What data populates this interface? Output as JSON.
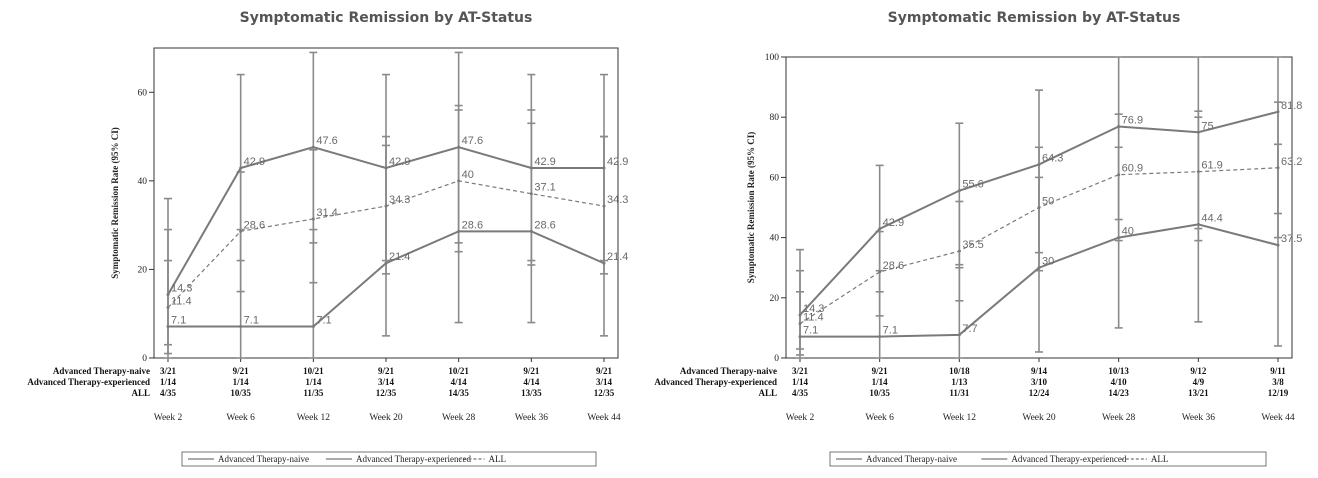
{
  "chart_data": [
    {
      "type": "line",
      "title": "Symptomatic Remission by AT-Status",
      "ylabel": "Symptomatic Remission Rate (95% CI)",
      "ylim": [
        0,
        70
      ],
      "yticks": [
        0,
        20,
        40,
        60
      ],
      "categories": [
        "Week 2",
        "Week 6",
        "Week 12",
        "Week 20",
        "Week 28",
        "Week 36",
        "Week 44"
      ],
      "series": [
        {
          "name": "Advanced Therapy-naive",
          "style": "solid",
          "color": "#7a7a7a",
          "values": [
            14.3,
            42.9,
            47.6,
            42.9,
            47.6,
            42.9,
            42.9
          ],
          "labels": [
            "14.3",
            "42.9",
            "47.6",
            "42.9",
            "47.6",
            "42.9",
            "42.9"
          ],
          "ci_low": [
            3,
            22,
            26,
            22,
            26,
            22,
            22
          ],
          "ci_high": [
            36,
            64,
            69,
            64,
            69,
            64,
            64
          ]
        },
        {
          "name": "Advanced Therapy-experienced",
          "style": "solid",
          "color": "#7a7a7a",
          "values": [
            7.1,
            7.1,
            7.1,
            21.4,
            28.6,
            28.6,
            21.4
          ],
          "labels": [
            "7.1",
            "7.1",
            "7.1",
            "21.4",
            "28.6",
            "28.6",
            "21.4"
          ],
          "ci_low": [
            0,
            0,
            0,
            5,
            8,
            8,
            5
          ],
          "ci_high": [
            29,
            29,
            29,
            48,
            56,
            56,
            50
          ]
        },
        {
          "name": "ALL",
          "style": "dashed",
          "color": "#7a7a7a",
          "values": [
            11.4,
            28.6,
            31.4,
            34.3,
            40,
            37.1,
            34.3
          ],
          "labels": [
            "11.4",
            "28.6",
            "31.4",
            "34.3",
            "40",
            "37.1",
            "34.3"
          ],
          "ci_low": [
            1,
            15,
            17,
            19,
            24,
            21,
            19
          ],
          "ci_high": [
            22,
            42,
            47,
            50,
            57,
            53,
            50
          ]
        }
      ],
      "n_table": {
        "rows": [
          {
            "label": "Advanced Therapy-naive",
            "values": [
              "3/21",
              "9/21",
              "10/21",
              "9/21",
              "10/21",
              "9/21",
              "9/21"
            ]
          },
          {
            "label": "Advanced Therapy-experienced",
            "values": [
              "1/14",
              "1/14",
              "1/14",
              "3/14",
              "4/14",
              "4/14",
              "3/14"
            ]
          },
          {
            "label": "ALL",
            "values": [
              "4/35",
              "10/35",
              "11/35",
              "12/35",
              "14/35",
              "13/35",
              "12/35"
            ]
          }
        ]
      },
      "legend": [
        "Advanced Therapy-naive",
        "Advanced Therapy-experienced",
        "ALL"
      ],
      "legend_position": "bottom-center"
    },
    {
      "type": "line",
      "title": "Symptomatic Remission by AT-Status",
      "ylabel": "Symptomatic Remission Rate (95% CI)",
      "ylim": [
        0,
        100
      ],
      "yticks": [
        0,
        20,
        40,
        60,
        80,
        100
      ],
      "categories": [
        "Week 2",
        "Week 6",
        "Week 12",
        "Week 20",
        "Week 28",
        "Week 36",
        "Week 44"
      ],
      "series": [
        {
          "name": "Advanced Therapy-naive",
          "style": "solid",
          "color": "#7a7a7a",
          "values": [
            14.3,
            42.9,
            55.6,
            64.3,
            76.9,
            75,
            81.8
          ],
          "labels": [
            "14.3",
            "42.9",
            "55.6",
            "64.3",
            "76.9",
            "75",
            "81.8"
          ],
          "ci_low": [
            3,
            22,
            31,
            35,
            46,
            43,
            48
          ],
          "ci_high": [
            36,
            64,
            78,
            89,
            100,
            100,
            100
          ]
        },
        {
          "name": "Advanced Therapy-experienced",
          "style": "solid",
          "color": "#7a7a7a",
          "values": [
            7.1,
            7.1,
            7.7,
            30,
            40,
            44.4,
            37.5
          ],
          "labels": [
            "7.1",
            "7.1",
            "7.7",
            "30",
            "40",
            "44.4",
            "37.5"
          ],
          "ci_low": [
            0,
            0,
            0,
            2,
            10,
            12,
            4
          ],
          "ci_high": [
            29,
            29,
            30,
            60,
            70,
            80,
            71
          ]
        },
        {
          "name": "ALL",
          "style": "dashed",
          "color": "#7a7a7a",
          "values": [
            11.4,
            28.6,
            35.5,
            50,
            60.9,
            61.9,
            63.2
          ],
          "labels": [
            "11.4",
            "28.6",
            "35.5",
            "50",
            "60.9",
            "61.9",
            "63.2"
          ],
          "ci_low": [
            1,
            14,
            19,
            29,
            39,
            39,
            40
          ],
          "ci_high": [
            22,
            42,
            52,
            70,
            81,
            82,
            85
          ]
        }
      ],
      "n_table": {
        "rows": [
          {
            "label": "Advanced Therapy-naive",
            "values": [
              "3/21",
              "9/21",
              "10/18",
              "9/14",
              "10/13",
              "9/12",
              "9/11"
            ]
          },
          {
            "label": "Advanced Therapy-experienced",
            "values": [
              "1/14",
              "1/14",
              "1/13",
              "3/10",
              "4/10",
              "4/9",
              "3/8"
            ]
          },
          {
            "label": "ALL",
            "values": [
              "4/35",
              "10/35",
              "11/31",
              "12/24",
              "14/23",
              "13/21",
              "12/19"
            ]
          }
        ]
      },
      "legend": [
        "Advanced Therapy-naive",
        "Advanced Therapy-experienced",
        "ALL"
      ],
      "legend_position": "bottom-center"
    }
  ]
}
